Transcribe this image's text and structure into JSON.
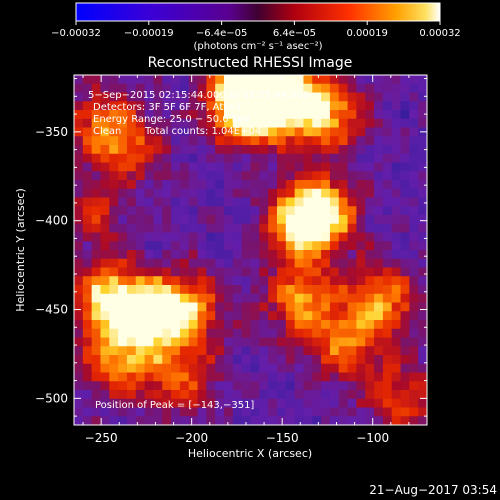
{
  "chart_data": {
    "type": "heatmap",
    "title": "Reconstructed RHESSI Image",
    "xlabel": "Heliocentric X (arcsec)",
    "ylabel": "Heliocentric Y (arcsec)",
    "xlim": [
      -265,
      -70
    ],
    "ylim": [
      -515,
      -318
    ],
    "x_ticks": [
      -250,
      -200,
      -150,
      -100
    ],
    "x_tick_labels": [
      "−250",
      "−200",
      "−150",
      "−100"
    ],
    "y_ticks": [
      -350,
      -400,
      -450,
      -500
    ],
    "y_tick_labels": [
      "−350",
      "−400",
      "−450",
      "−500"
    ],
    "colorbar": {
      "range": [
        -0.00032,
        0.00032
      ],
      "tick_labels": [
        "−0.00032",
        "−0.00019",
        "−6.4e−05",
        "6.4e−05",
        "0.00019",
        "0.00032"
      ],
      "unit_label": "(photons cm⁻² s⁻¹ asec⁻²)",
      "colormap": "blue-purple-red-yellow-white"
    },
    "annotations": {
      "time": "5−Sep−2015 02:15:44.000 to 02:25:44.000",
      "detectors": "Detectors: 3F 5F 6F 7F, Att=1",
      "energy": "Energy Range: 25.0 − 50.0 keV",
      "method": "Clean",
      "counts": "Total counts: 1.04E+04",
      "peak": "Position of Peak = [−143,−351]"
    },
    "bright_regions": [
      {
        "x": -170,
        "y": -335,
        "level": 1.0
      },
      {
        "x": -165,
        "y": -325,
        "level": 0.9
      },
      {
        "x": -150,
        "y": -330,
        "level": 0.85
      },
      {
        "x": -125,
        "y": -340,
        "level": 0.75
      },
      {
        "x": -250,
        "y": -345,
        "level": 0.5
      },
      {
        "x": -235,
        "y": -360,
        "level": 0.45
      },
      {
        "x": -130,
        "y": -395,
        "level": 0.95
      },
      {
        "x": -140,
        "y": -405,
        "level": 0.6
      },
      {
        "x": -245,
        "y": -445,
        "level": 0.9
      },
      {
        "x": -205,
        "y": -450,
        "level": 0.8
      },
      {
        "x": -225,
        "y": -455,
        "level": 0.7
      },
      {
        "x": -140,
        "y": -445,
        "level": 0.65
      },
      {
        "x": -95,
        "y": -445,
        "level": 0.7
      },
      {
        "x": -115,
        "y": -470,
        "level": 0.55
      },
      {
        "x": -240,
        "y": -480,
        "level": 0.6
      },
      {
        "x": -205,
        "y": -490,
        "level": 0.5
      },
      {
        "x": -85,
        "y": -500,
        "level": 0.5
      },
      {
        "x": -255,
        "y": -395,
        "level": 0.35
      }
    ]
  },
  "footer": {
    "timestamp": "21−Aug−2017 03:54"
  },
  "style": {
    "background": "#000000",
    "text": "#ffffff"
  }
}
